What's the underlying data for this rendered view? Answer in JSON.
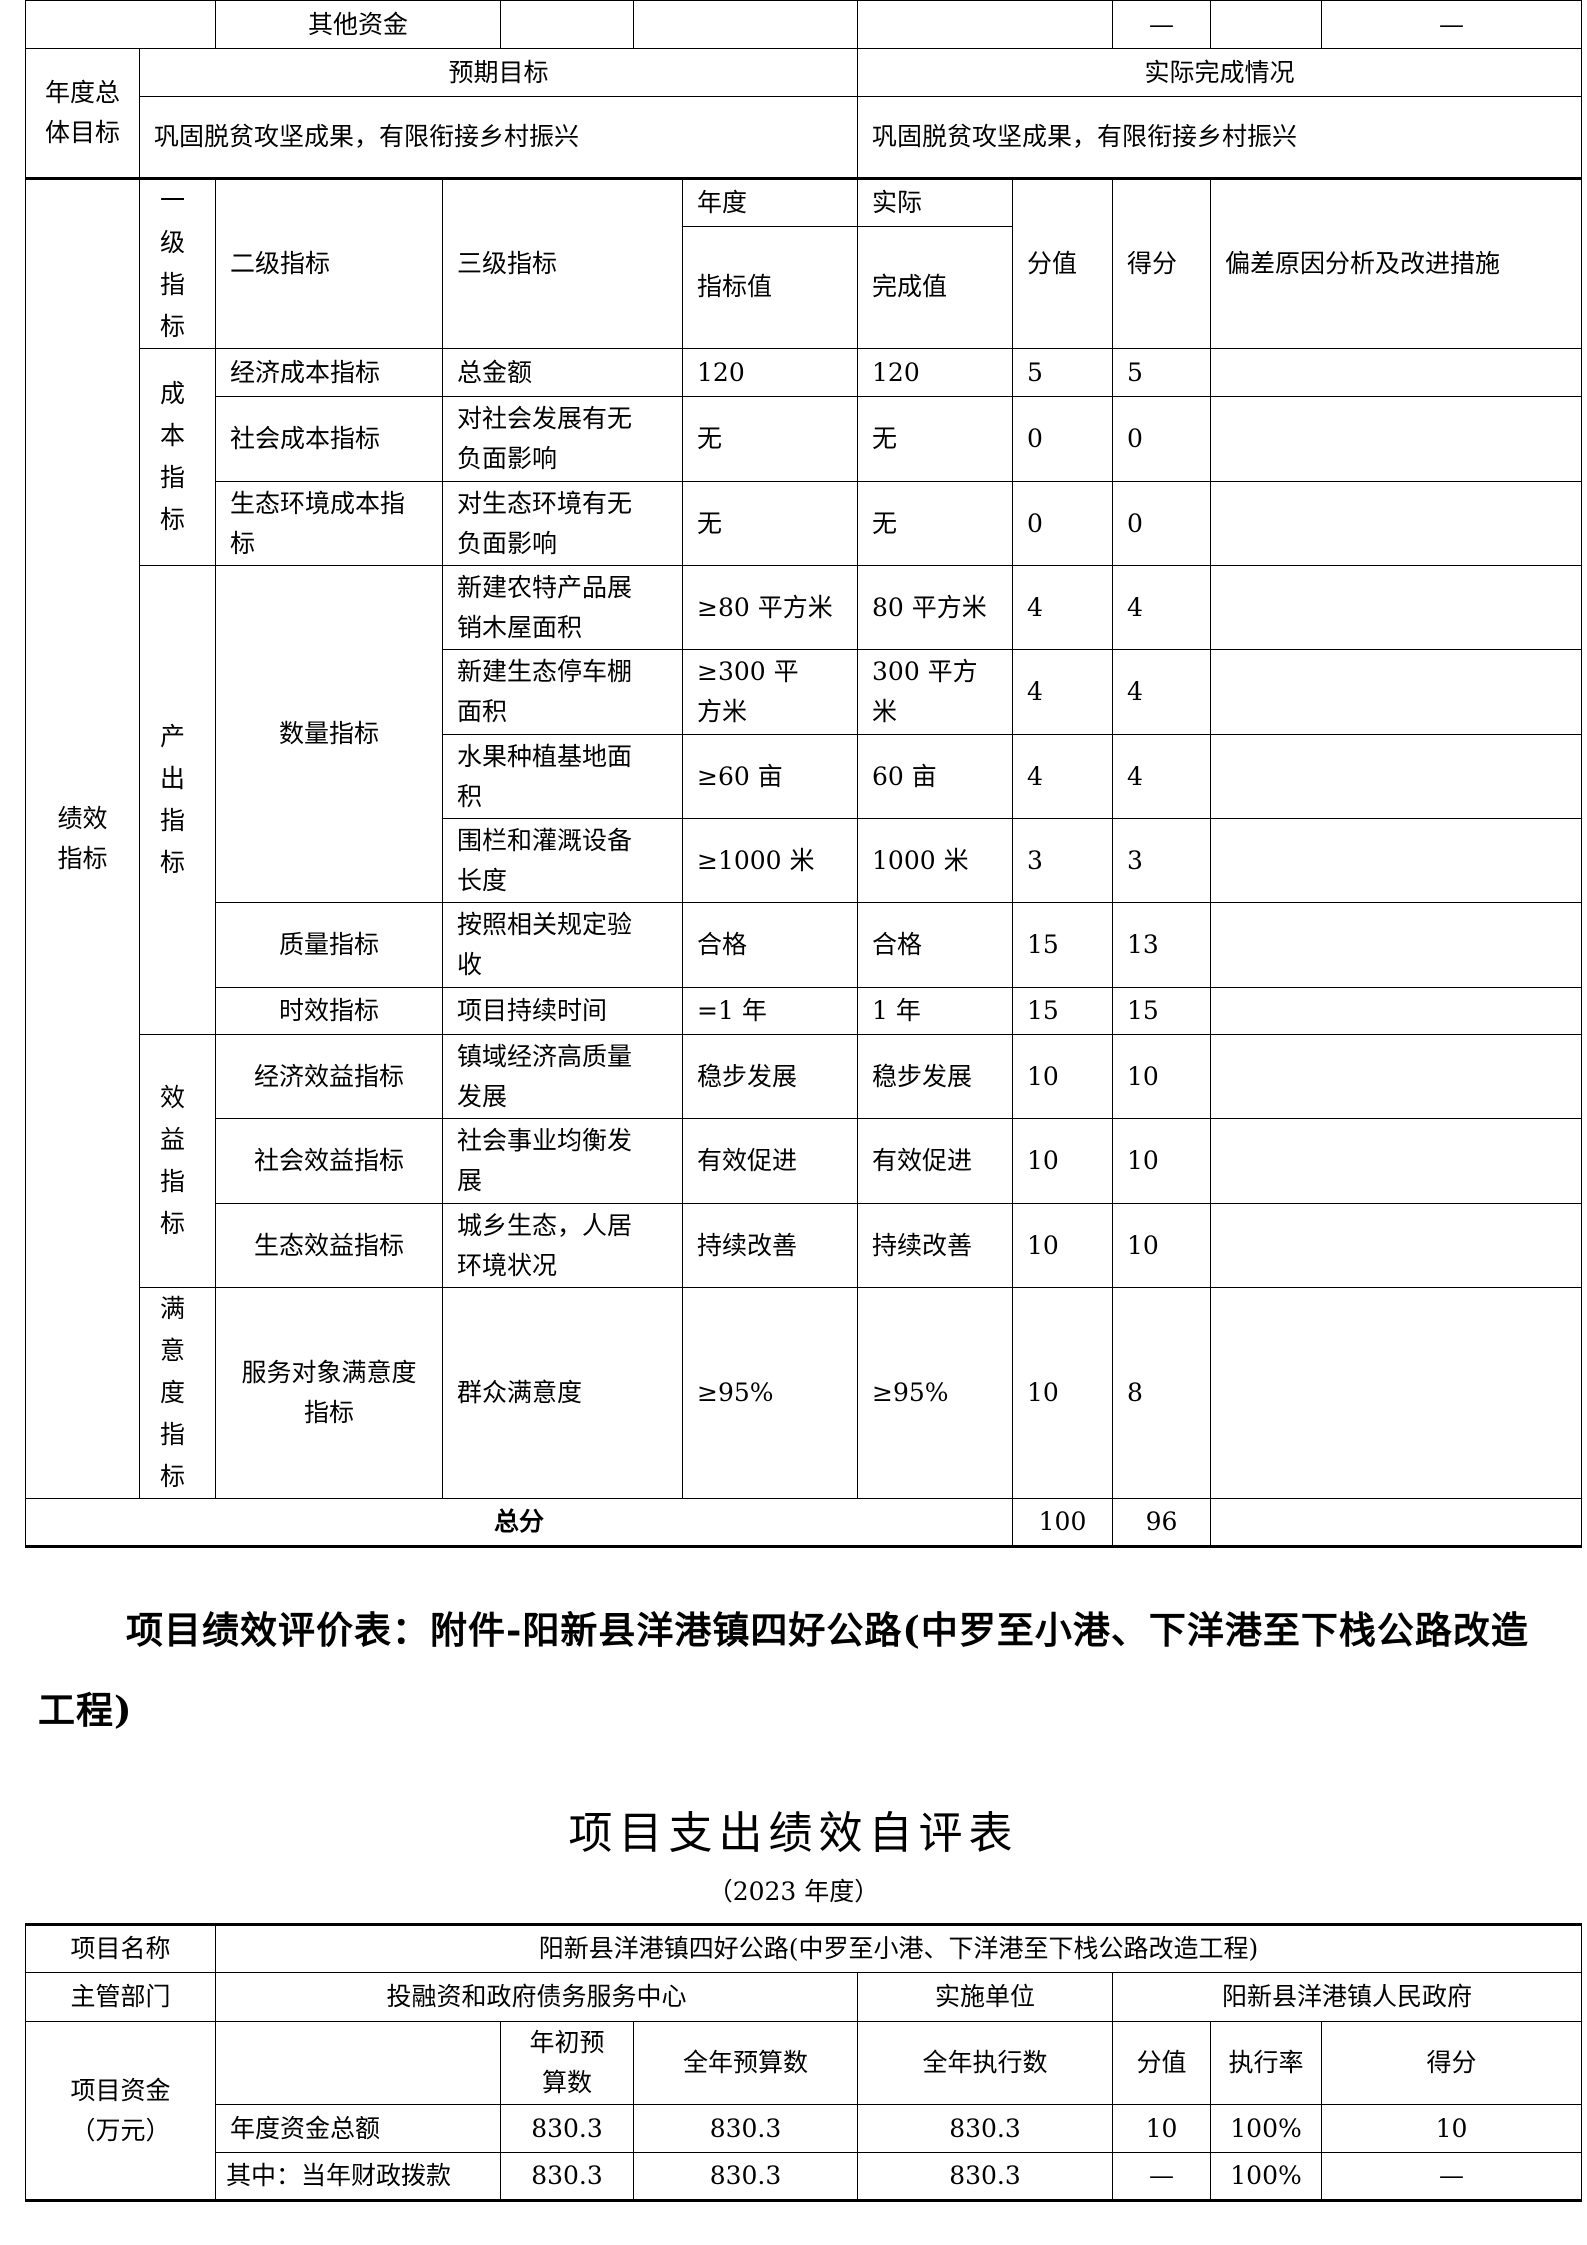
{
  "top_row": {
    "label": "其他资金",
    "score_value": "—",
    "score": "—"
  },
  "goal": {
    "label": "年度总体目标",
    "expected_header": "预期目标",
    "actual_header": "实际完成情况",
    "expected": "巩固脱贫攻坚成果，有限衔接乡村振兴",
    "actual": "巩固脱贫攻坚成果，有限衔接乡村振兴"
  },
  "indicators": {
    "section_label": "绩效指标",
    "headers": {
      "level1": "一级指标",
      "level2": "二级指标",
      "level3": "三级指标",
      "annual_top": "年度",
      "annual_bottom": "指标值",
      "actual_top": "实际",
      "actual_bottom": "完成值",
      "score_value": "分值",
      "score": "得分",
      "deviation": "偏差原因分析及改进措施"
    },
    "level1": [
      "成本指标",
      "产出指标",
      "效益指标",
      "满意度指标"
    ],
    "level2": [
      "经济成本指标",
      "社会成本指标",
      "生态环境成本指标",
      "数量指标",
      "质量指标",
      "时效指标",
      "经济效益指标",
      "社会效益指标",
      "生态效益指标",
      "服务对象满意度指标"
    ],
    "rows": [
      {
        "l3": "总金额",
        "target": "120",
        "actual": "120",
        "value": "5",
        "score": "5"
      },
      {
        "l3": "对社会发展有无负面影响",
        "target": "无",
        "actual": "无",
        "value": "0",
        "score": "0"
      },
      {
        "l3": "对生态环境有无负面影响",
        "target": "无",
        "actual": "无",
        "value": "0",
        "score": "0"
      },
      {
        "l3": "新建农特产品展销木屋面积",
        "target": "≥80 平方米",
        "actual": "80 平方米",
        "value": "4",
        "score": "4"
      },
      {
        "l3": "新建生态停车棚面积",
        "target": "≥300 平方米",
        "actual": "300 平方米",
        "value": "4",
        "score": "4"
      },
      {
        "l3": "水果种植基地面积",
        "target": "≥60 亩",
        "actual": "60 亩",
        "value": "4",
        "score": "4"
      },
      {
        "l3": "围栏和灌溉设备长度",
        "target": "≥1000 米",
        "actual": "1000 米",
        "value": "3",
        "score": "3"
      },
      {
        "l3": "按照相关规定验收",
        "target": "合格",
        "actual": "合格",
        "value": "15",
        "score": "13"
      },
      {
        "l3": "项目持续时间",
        "target": "=1 年",
        "actual": "1 年",
        "value": "15",
        "score": "15"
      },
      {
        "l3": "镇域经济高质量发展",
        "target": "稳步发展",
        "actual": "稳步发展",
        "value": "10",
        "score": "10"
      },
      {
        "l3": "社会事业均衡发展",
        "target": "有效促进",
        "actual": "有效促进",
        "value": "10",
        "score": "10"
      },
      {
        "l3": "城乡生态，人居环境状况",
        "target": "持续改善",
        "actual": "持续改善",
        "value": "10",
        "score": "10"
      },
      {
        "l3": "群众满意度",
        "target": "≥95%",
        "actual": "≥95%",
        "value": "10",
        "score": "8"
      }
    ],
    "total": {
      "label": "总分",
      "value": "100",
      "score": "96"
    }
  },
  "section2": {
    "title": "项目绩效评价表：附件-阳新县洋港镇四好公路(中罗至小港、下洋港至下栈公路改造工程)",
    "subtitle": "项目支出绩效自评表",
    "year": "（2023 年度）"
  },
  "project": {
    "name_label": "项目名称",
    "name": "阳新县洋港镇四好公路(中罗至小港、下洋港至下栈公路改造工程)",
    "dept_label": "主管部门",
    "dept": "投融资和政府债务服务中心",
    "impl_label": "实施单位",
    "impl": "阳新县洋港镇人民政府",
    "funds_label": "项目资金（万元）",
    "funds_headers": {
      "initial": "年初预算数",
      "annual": "全年预算数",
      "executed": "全年执行数",
      "score_value": "分值",
      "rate": "执行率",
      "score": "得分"
    },
    "funds_rows": [
      {
        "label": "年度资金总额",
        "initial": "830.3",
        "annual": "830.3",
        "executed": "830.3",
        "score_value": "10",
        "rate": "100%",
        "score": "10"
      },
      {
        "label": "其中：当年财政拨款",
        "initial": "830.3",
        "annual": "830.3",
        "executed": "830.3",
        "score_value": "—",
        "rate": "100%",
        "score": "—"
      }
    ]
  }
}
